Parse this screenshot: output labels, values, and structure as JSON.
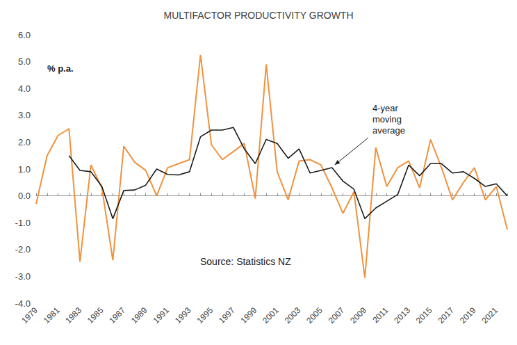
{
  "chart_data": {
    "type": "line",
    "title": "MULTIFACTOR PRODUCTIVITY GROWTH",
    "y_label": "% p.a.",
    "source": "Source: Statistics NZ",
    "categories": [
      "1979",
      null,
      "1981",
      null,
      "1983",
      null,
      "1985",
      null,
      "1987",
      null,
      "1989",
      null,
      "1991",
      null,
      "1993",
      null,
      "1995",
      null,
      "1997",
      null,
      "1999",
      null,
      "2001",
      null,
      "2003",
      null,
      "2005",
      null,
      "2007",
      null,
      "2009",
      null,
      "2011",
      null,
      "2013",
      null,
      "2015",
      null,
      "2017",
      null,
      "2019",
      null,
      "2021",
      null
    ],
    "series": [
      {
        "color": "#f0923e",
        "line_style": "solid",
        "values": [
          -0.3,
          1.5,
          2.25,
          2.5,
          -2.45,
          1.15,
          0.3,
          -2.4,
          1.85,
          1.25,
          0.95,
          0.0,
          1.05,
          1.2,
          1.35,
          5.25,
          1.9,
          1.35,
          1.65,
          1.95,
          -0.1,
          4.9,
          0.9,
          -0.15,
          1.3,
          1.35,
          1.15,
          0.3,
          -0.65,
          0.15,
          -3.05,
          1.8,
          0.35,
          1.05,
          1.3,
          0.3,
          2.1,
          1.05,
          -0.15,
          0.5,
          1.05,
          -0.15,
          0.35,
          -1.25
        ]
      },
      {
        "name": "4-year moving average",
        "color": "#1a1a1a",
        "line_style": "solid",
        "values": [
          null,
          null,
          null,
          1.5,
          0.95,
          0.9,
          0.35,
          -0.85,
          0.2,
          0.22,
          0.4,
          1.0,
          0.8,
          0.78,
          0.9,
          2.2,
          2.45,
          2.45,
          2.55,
          1.75,
          1.2,
          2.1,
          1.95,
          1.4,
          1.75,
          0.85,
          0.95,
          1.05,
          0.55,
          0.25,
          -0.85,
          -0.45,
          -0.2,
          0.05,
          1.15,
          0.75,
          1.2,
          1.2,
          0.85,
          0.9,
          0.65,
          0.35,
          0.45,
          0.0
        ]
      }
    ],
    "ylim": [
      -4,
      6
    ],
    "yticks": [
      {
        "value": -4,
        "label": "-4.0"
      },
      {
        "value": -3,
        "label": "-3.0"
      },
      {
        "value": -2,
        "label": "-2.0"
      },
      {
        "value": -1,
        "label": "-1.0"
      },
      {
        "value": 0,
        "label": "0.0"
      },
      {
        "value": 1,
        "label": "1.0"
      },
      {
        "value": 2,
        "label": "2.0"
      },
      {
        "value": 3,
        "label": "3.0"
      },
      {
        "value": 4,
        "label": "4.0"
      },
      {
        "value": 5,
        "label": "5.0"
      },
      {
        "value": 6,
        "label": "6.0"
      }
    ],
    "grid": false
  }
}
